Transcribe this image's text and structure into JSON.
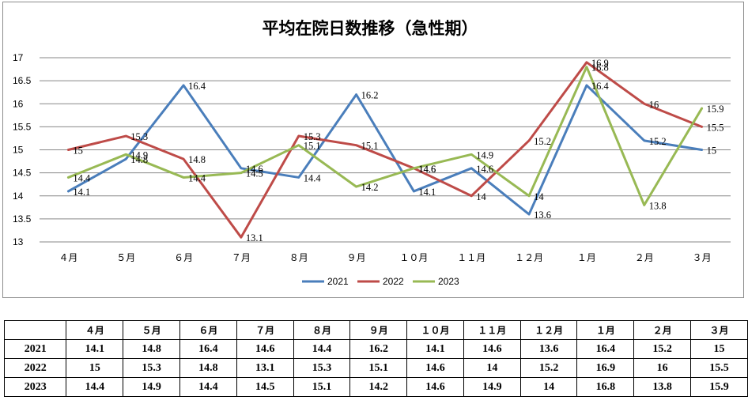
{
  "chart_data": {
    "type": "line",
    "title": "平均在院日数推移（急性期）",
    "categories": [
      "４月",
      "５月",
      "６月",
      "７月",
      "８月",
      "９月",
      "１０月",
      "１１月",
      "１２月",
      "１月",
      "２月",
      "３月"
    ],
    "series": [
      {
        "name": "2021",
        "color": "#4a7ebb",
        "values": [
          14.1,
          14.8,
          16.4,
          14.6,
          14.4,
          16.2,
          14.1,
          14.6,
          13.6,
          16.4,
          15.2,
          15
        ]
      },
      {
        "name": "2022",
        "color": "#be4b48",
        "values": [
          15,
          15.3,
          14.8,
          13.1,
          15.3,
          15.1,
          14.6,
          14,
          15.2,
          16.9,
          16,
          15.5
        ]
      },
      {
        "name": "2023",
        "color": "#98b954",
        "values": [
          14.4,
          14.9,
          14.4,
          14.5,
          15.1,
          14.2,
          14.6,
          14.9,
          14,
          16.8,
          13.8,
          15.9
        ]
      }
    ],
    "y_ticks": [
      "13",
      "13.5",
      "14",
      "14.5",
      "15",
      "15.5",
      "16",
      "16.5",
      "17"
    ],
    "ylim": [
      13,
      17
    ],
    "grid": true,
    "legend_position": "bottom"
  },
  "table": {
    "headers": [
      "",
      "４月",
      "５月",
      "６月",
      "７月",
      "８月",
      "９月",
      "１０月",
      "１１月",
      "１２月",
      "１月",
      "２月",
      "３月"
    ],
    "rows": [
      [
        "2021",
        "14.1",
        "14.8",
        "16.4",
        "14.6",
        "14.4",
        "16.2",
        "14.1",
        "14.6",
        "13.6",
        "16.4",
        "15.2",
        "15"
      ],
      [
        "2022",
        "15",
        "15.3",
        "14.8",
        "13.1",
        "15.3",
        "15.1",
        "14.6",
        "14",
        "15.2",
        "16.9",
        "16",
        "15.5"
      ],
      [
        "2023",
        "14.4",
        "14.9",
        "14.4",
        "14.5",
        "15.1",
        "14.2",
        "14.6",
        "14.9",
        "14",
        "16.8",
        "13.8",
        "15.9"
      ]
    ]
  }
}
